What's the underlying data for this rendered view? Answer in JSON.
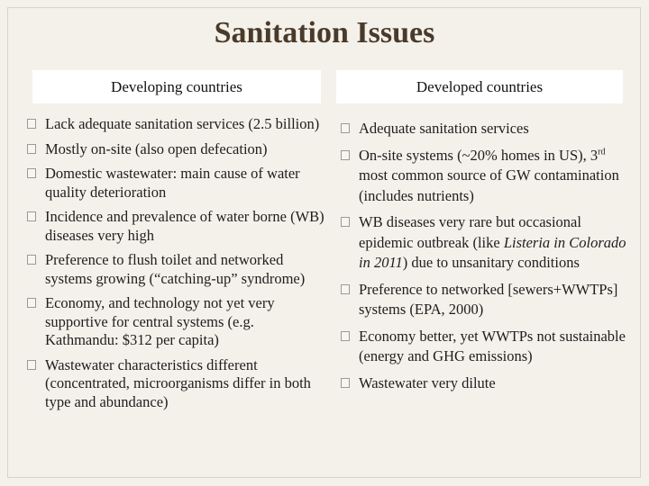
{
  "title": "Sanitation Issues",
  "columns": {
    "left": {
      "header": "Developing countries",
      "items": [
        {
          "text": "Lack adequate sanitation services (2.5 billion)"
        },
        {
          "text": "Mostly on-site (also open defecation)"
        },
        {
          "text": "Domestic wastewater: main cause of water quality deterioration"
        },
        {
          "text": "Incidence and prevalence of water borne (WB) diseases very high"
        },
        {
          "text": "Preference to flush toilet and networked systems growing (“catching-up” syndrome)"
        },
        {
          "text": "Economy, and technology not yet very supportive for central systems (e.g. Kathmandu: $312 per capita)"
        },
        {
          "text": "Wastewater characteristics different (concentrated, microorganisms differ in both type and abundance)"
        }
      ]
    },
    "right": {
      "header": "Developed countries",
      "items": [
        {
          "text": "Adequate sanitation services"
        },
        {
          "text_a": "On-site systems (~20% homes in US), 3",
          "sup": "rd",
          "text_b": " most common source of GW contamination (includes nutrients)"
        },
        {
          "text_a": "WB diseases very rare but occasional epidemic outbreak (like ",
          "italic": "Listeria in Colorado in 2011",
          "text_b": ") due to unsanitary conditions"
        },
        {
          "text": "Preference to networked [sewers+WWTPs] systems (EPA, 2000)"
        },
        {
          "text": "Economy better, yet WWTPs not sustainable (energy and GHG emissions)"
        },
        {
          "text": "Wastewater very dilute"
        }
      ]
    }
  },
  "icons": {
    "bullet": "checkbox-bullet-icon"
  },
  "colors": {
    "title": "#4a3a2a",
    "background": "#f4f1ea",
    "header_bg": "#ffffff"
  }
}
